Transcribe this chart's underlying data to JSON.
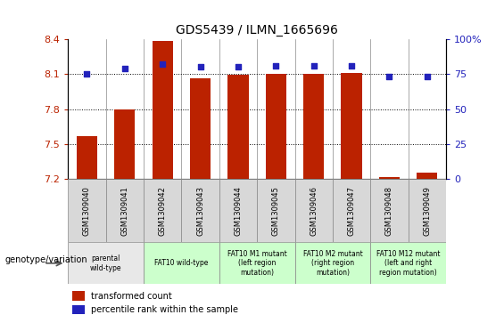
{
  "title": "GDS5439 / ILMN_1665696",
  "samples": [
    "GSM1309040",
    "GSM1309041",
    "GSM1309042",
    "GSM1309043",
    "GSM1309044",
    "GSM1309045",
    "GSM1309046",
    "GSM1309047",
    "GSM1309048",
    "GSM1309049"
  ],
  "bar_values": [
    7.57,
    7.8,
    8.38,
    8.06,
    8.09,
    8.1,
    8.1,
    8.11,
    7.22,
    7.26
  ],
  "dot_values": [
    75,
    79,
    82,
    80,
    80,
    81,
    81,
    81,
    73,
    73
  ],
  "ylim_left": [
    7.2,
    8.4
  ],
  "ylim_right": [
    0,
    100
  ],
  "yticks_left": [
    7.2,
    7.5,
    7.8,
    8.1,
    8.4
  ],
  "ytick_labels_left": [
    "7.2",
    "7.5",
    "7.8",
    "8.1",
    "8.4"
  ],
  "yticks_right": [
    0,
    25,
    50,
    75,
    100
  ],
  "ytick_labels_right": [
    "0",
    "25",
    "50",
    "75",
    "100%"
  ],
  "bar_color": "#bb2200",
  "dot_color": "#2222bb",
  "grid_lines": [
    7.5,
    7.8,
    8.1
  ],
  "genotype_groups": [
    {
      "label": "parental\nwild-type",
      "start": 0,
      "end": 2
    },
    {
      "label": "FAT10 wild-type",
      "start": 2,
      "end": 4
    },
    {
      "label": "FAT10 M1 mutant\n(left region\nmutation)",
      "start": 4,
      "end": 6
    },
    {
      "label": "FAT10 M2 mutant\n(right region\nmutation)",
      "start": 6,
      "end": 8
    },
    {
      "label": "FAT10 M12 mutant\n(left and right\nregion mutation)",
      "start": 8,
      "end": 10
    }
  ],
  "group_bg_colors": [
    "#e8e8e8",
    "#ccffcc",
    "#ccffcc",
    "#ccffcc",
    "#ccffcc"
  ],
  "sample_box_color": "#d8d8d8",
  "legend_bar_label": "transformed count",
  "legend_dot_label": "percentile rank within the sample",
  "xlabel_genotype": "genotype/variation"
}
